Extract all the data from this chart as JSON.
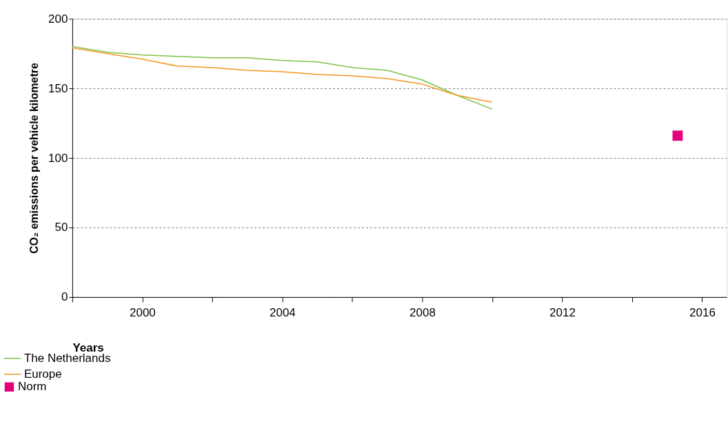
{
  "chart_data": {
    "type": "line",
    "xlabel": "Years",
    "ylabel": "CO₂ emissions per vehicle kilometre",
    "x": [
      1998,
      1999,
      2000,
      2001,
      2002,
      2003,
      2004,
      2005,
      2006,
      2007,
      2008,
      2009,
      2010
    ],
    "series": [
      {
        "name": "The Netherlands",
        "color": "#7cc242",
        "values": [
          180,
          176,
          174,
          173,
          172,
          172,
          170,
          169,
          165,
          163,
          156,
          145,
          135
        ]
      },
      {
        "name": "Europe",
        "color": "#f7941d",
        "values": [
          179,
          175,
          171,
          166,
          165,
          163,
          162,
          160,
          159,
          157,
          153,
          145,
          140
        ]
      },
      {
        "name": "Norm",
        "type": "scatter",
        "marker": "square",
        "color": "#e5007d",
        "x": [
          2015.3
        ],
        "values": [
          116
        ]
      }
    ],
    "xlim": [
      1998,
      2016.7
    ],
    "xticks": [
      {
        "value": 1998,
        "label": null
      },
      2000,
      {
        "value": 2002,
        "label": null
      },
      2004,
      {
        "value": 2006,
        "label": null
      },
      2008,
      {
        "value": 2010,
        "label": null
      },
      2012,
      {
        "value": 2014,
        "label": null
      },
      2016
    ],
    "ylim": [
      0,
      200
    ],
    "yticks": [
      0,
      50,
      100,
      150,
      200
    ],
    "grid": "y",
    "legend": "bottom left",
    "line_style": "solid"
  }
}
